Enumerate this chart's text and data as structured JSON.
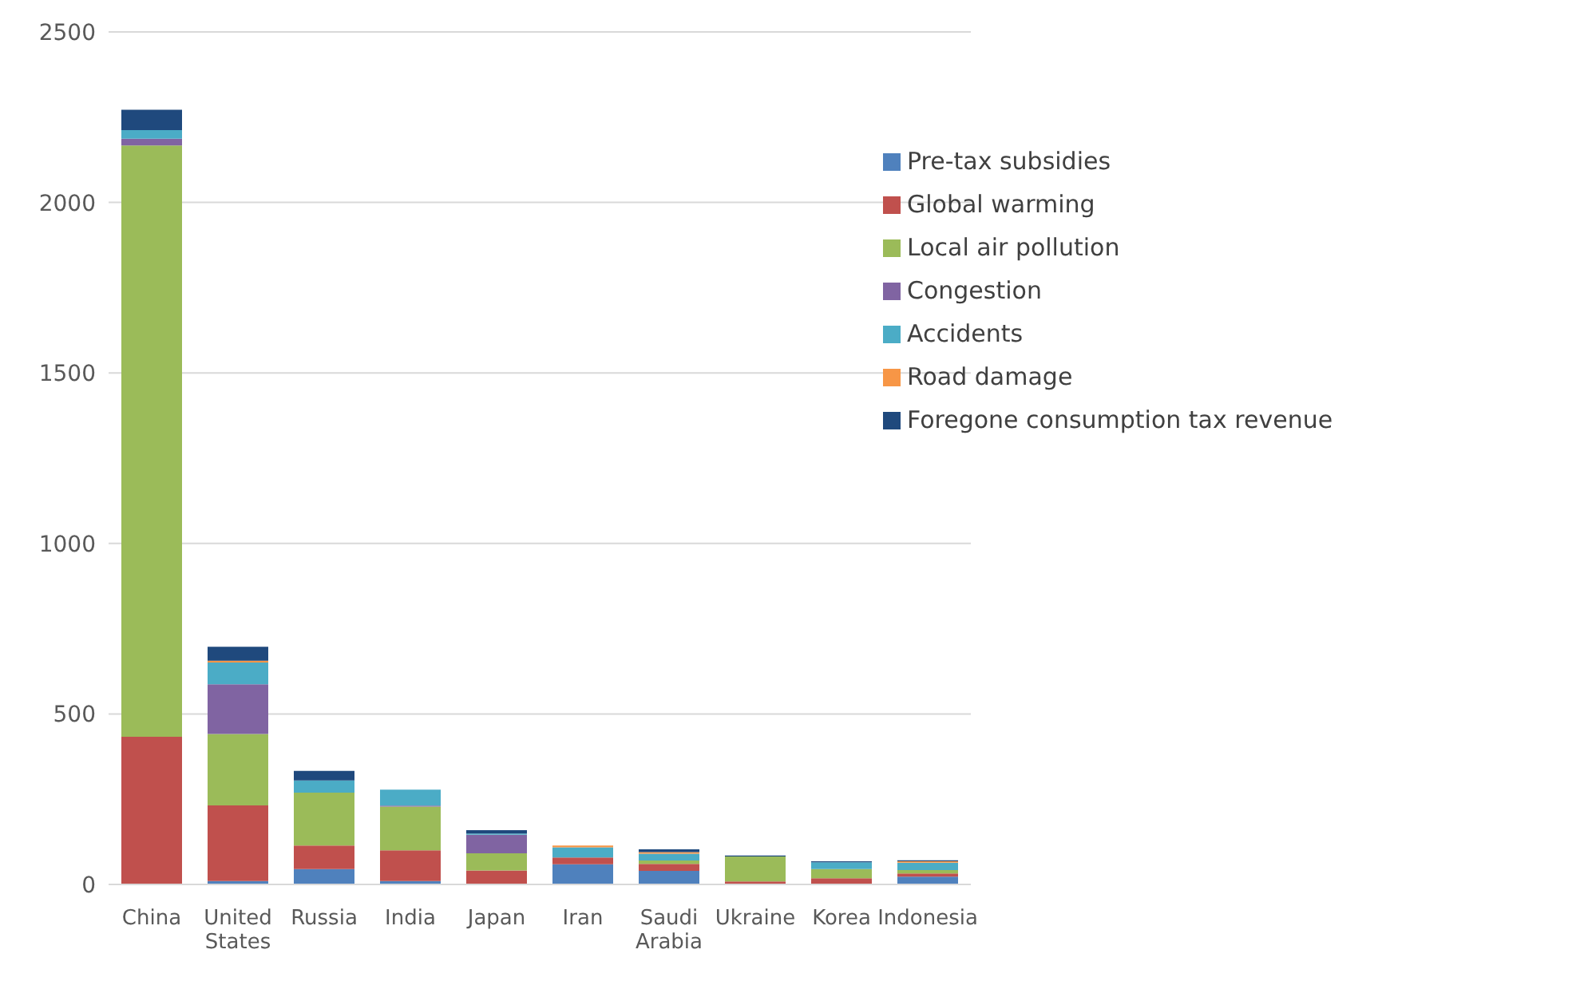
{
  "chart_data": {
    "type": "bar",
    "stacked": true,
    "categories": [
      "China",
      "United States",
      "Russia",
      "India",
      "Japan",
      "Iran",
      "Saudi Arabia",
      "Ukraine",
      "Korea",
      "Indonesia"
    ],
    "series": [
      {
        "name": "Pre-tax subsidies",
        "color": "#4f81bd",
        "values": [
          0,
          10,
          45,
          10,
          0,
          59,
          40,
          null,
          null,
          23
        ]
      },
      {
        "name": "Global warming",
        "color": "#c0504d",
        "values": [
          433,
          222,
          69,
          90,
          41,
          20,
          20,
          9,
          18,
          9
        ]
      },
      {
        "name": "Local air pollution",
        "color": "#9bbb59",
        "values": [
          1734,
          209,
          155,
          128,
          50,
          0,
          10,
          73,
          27,
          10
        ]
      },
      {
        "name": "Congestion",
        "color": "#8064a2",
        "values": [
          20,
          146,
          0,
          3,
          55,
          0,
          0,
          0,
          0,
          0
        ]
      },
      {
        "name": "Accidents",
        "color": "#4bacc6",
        "values": [
          25,
          64,
          36,
          47,
          3,
          30,
          20,
          0,
          20,
          22
        ]
      },
      {
        "name": "Road damage",
        "color": "#f79646",
        "values": [
          0,
          5,
          0,
          0,
          0,
          5,
          5,
          0,
          0,
          4
        ]
      },
      {
        "name": "Foregone consumption tax revenue",
        "color": "#1f497d",
        "values": [
          60,
          41,
          28,
          0,
          10,
          0,
          8,
          3,
          3,
          3
        ]
      }
    ],
    "ylim": [
      0,
      2500
    ],
    "yticks": [
      0,
      500,
      1000,
      1500,
      2000,
      2500
    ],
    "grid": "y",
    "legend": "top right"
  }
}
